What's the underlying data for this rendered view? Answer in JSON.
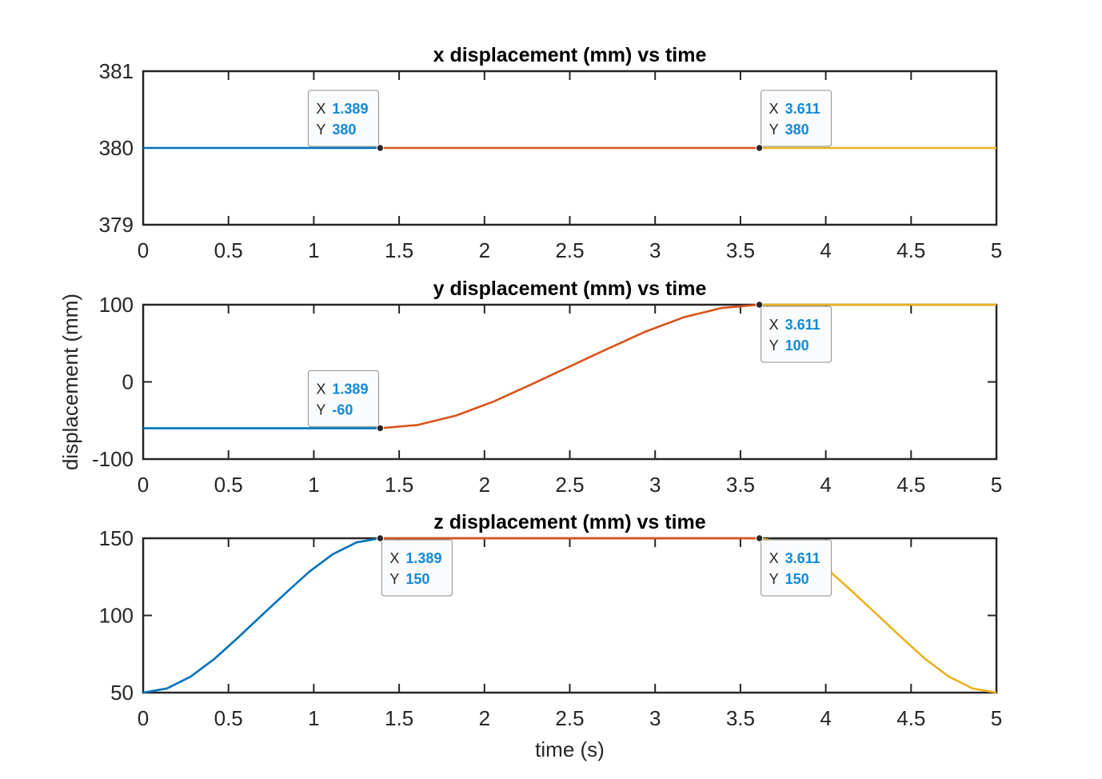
{
  "chart_data": [
    {
      "type": "line",
      "title": "x displacement (mm) vs time",
      "xlabel": "",
      "ylabel": "",
      "xlim": [
        0,
        5
      ],
      "ylim": [
        379,
        381
      ],
      "xticks": [
        "0",
        "0.5",
        "1",
        "1.5",
        "2",
        "2.5",
        "3",
        "3.5",
        "4",
        "4.5",
        "5"
      ],
      "yticks": [
        "379",
        "380",
        "381"
      ],
      "series": [
        {
          "color": "#0072bd",
          "x": [
            0,
            1.389
          ],
          "y": [
            380,
            380
          ]
        },
        {
          "color": "#d95319",
          "x": [
            1.389,
            3.611
          ],
          "y": [
            380,
            380
          ]
        },
        {
          "color": "#edb120",
          "x": [
            3.611,
            5
          ],
          "y": [
            380,
            380
          ]
        }
      ],
      "datatips": [
        {
          "x_label": "X",
          "x_value": "1.389",
          "y_label": "Y",
          "y_value": "380",
          "x": 1.389,
          "y": 380,
          "placement": "above-left"
        },
        {
          "x_label": "X",
          "x_value": "3.611",
          "y_label": "Y",
          "y_value": "380",
          "x": 3.611,
          "y": 380,
          "placement": "above-right"
        }
      ]
    },
    {
      "type": "line",
      "title": "y displacement (mm) vs time",
      "xlabel": "",
      "ylabel": "displacement (mm)",
      "xlim": [
        0,
        5
      ],
      "ylim": [
        -100,
        100
      ],
      "xticks": [
        "0",
        "0.5",
        "1",
        "1.5",
        "2",
        "2.5",
        "3",
        "3.5",
        "4",
        "4.5",
        "5"
      ],
      "yticks": [
        "-100",
        "0",
        "100"
      ],
      "series": [
        {
          "color": "#0072bd",
          "x": [
            0,
            1.389
          ],
          "y": [
            -60,
            -60
          ]
        },
        {
          "color": "#d95319",
          "x": [
            1.389,
            1.611,
            1.833,
            2.056,
            2.278,
            2.5,
            2.722,
            2.944,
            3.167,
            3.389,
            3.611
          ],
          "y": [
            -60,
            -55.7,
            -43.6,
            -25.2,
            -2.9,
            20,
            42.9,
            65.2,
            83.6,
            95.7,
            100
          ]
        },
        {
          "color": "#edb120",
          "x": [
            3.611,
            5
          ],
          "y": [
            100,
            100
          ]
        }
      ],
      "datatips": [
        {
          "x_label": "X",
          "x_value": "1.389",
          "y_label": "Y",
          "y_value": "-60",
          "x": 1.389,
          "y": -60,
          "placement": "above-left"
        },
        {
          "x_label": "X",
          "x_value": "3.611",
          "y_label": "Y",
          "y_value": "100",
          "x": 3.611,
          "y": 100,
          "placement": "below-right"
        }
      ]
    },
    {
      "type": "line",
      "title": "z displacement (mm) vs time",
      "xlabel": "time (s)",
      "ylabel": "",
      "xlim": [
        0,
        5
      ],
      "ylim": [
        50,
        150
      ],
      "xticks": [
        "0",
        "0.5",
        "1",
        "1.5",
        "2",
        "2.5",
        "3",
        "3.5",
        "4",
        "4.5",
        "5"
      ],
      "yticks": [
        "50",
        "100",
        "150"
      ],
      "series": [
        {
          "color": "#0072bd",
          "x": [
            0,
            0.139,
            0.278,
            0.417,
            0.556,
            0.694,
            0.833,
            0.972,
            1.111,
            1.25,
            1.389
          ],
          "y": [
            50,
            52.7,
            60.3,
            71.8,
            85.7,
            100,
            114.3,
            128.2,
            139.7,
            147.3,
            150
          ]
        },
        {
          "color": "#d95319",
          "x": [
            1.389,
            3.611
          ],
          "y": [
            150,
            150
          ]
        },
        {
          "color": "#edb120",
          "x": [
            3.611,
            3.75,
            3.889,
            4.028,
            4.167,
            4.306,
            4.444,
            4.583,
            4.722,
            4.861,
            5
          ],
          "y": [
            150,
            147.3,
            139.7,
            128.2,
            114.3,
            100,
            85.7,
            71.8,
            60.3,
            52.7,
            50
          ]
        }
      ],
      "datatips": [
        {
          "x_label": "X",
          "x_value": "1.389",
          "y_label": "Y",
          "y_value": "150",
          "x": 1.389,
          "y": 150,
          "placement": "below-right"
        },
        {
          "x_label": "X",
          "x_value": "3.611",
          "y_label": "Y",
          "y_value": "150",
          "x": 3.611,
          "y": 150,
          "placement": "below-right"
        }
      ]
    }
  ]
}
